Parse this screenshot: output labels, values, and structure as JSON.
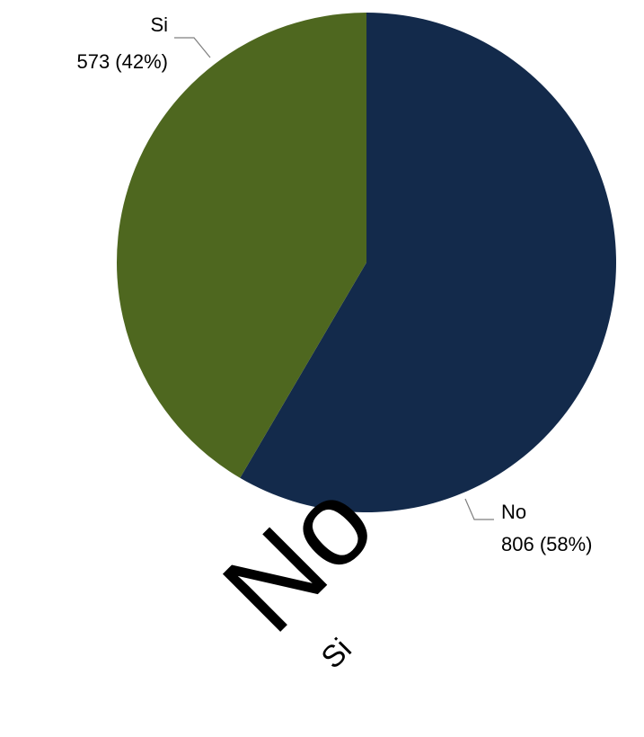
{
  "chart_data": {
    "type": "pie",
    "series": [
      {
        "name": "",
        "slices": [
          {
            "label": "No",
            "value": 806,
            "percent": "58%",
            "color": "#132a4b",
            "data_label_line1": "No",
            "data_label_line2": "806 (58%)"
          },
          {
            "label": "Si",
            "value": 573,
            "percent": "42%",
            "color": "#4e671f",
            "data_label_line1": "Si",
            "data_label_line2": "573 (42%)"
          }
        ]
      }
    ],
    "start_angle_deg": 0,
    "direction": "clockwise",
    "legend": {
      "placement": "bottom",
      "entries": [
        "No",
        "Si"
      ]
    }
  }
}
